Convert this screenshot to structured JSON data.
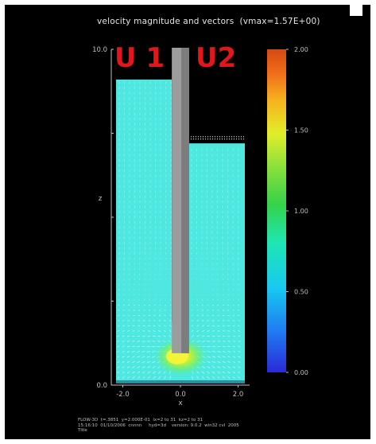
{
  "chart_data": {
    "type": "heatmap",
    "title": "velocity magnitude and vectors",
    "title_suffix": "(vmax=1.57E+00)",
    "xlabel": "x",
    "ylabel": "z",
    "x_ticks": [
      "-2.0",
      "0.0",
      "2.0"
    ],
    "y_ticks": [
      "0.0",
      "10.0"
    ],
    "xlim": [
      -2.4,
      2.4
    ],
    "ylim": [
      0,
      10
    ],
    "colorbar": {
      "ticks": [
        "0.00",
        "0.50",
        "1.00",
        "1.50",
        "2.00"
      ],
      "range": [
        0,
        2
      ]
    },
    "annotations": [
      {
        "id": "u1",
        "text": "U 1",
        "color": "#e3161b"
      },
      {
        "id": "u2",
        "text": "U2",
        "color": "#e3161b"
      }
    ],
    "fluid_levels": {
      "left_tank": 9.1,
      "right_tank": 7.2
    },
    "baffle_x_range": [
      -0.3,
      0.3
    ],
    "high_velocity_region": {
      "x": 0.0,
      "z": 1.0,
      "magnitude": 1.57
    },
    "background_magnitude": 0.7,
    "colors": {
      "fluid": "#4ee8e0",
      "vector": "#c8fdfb",
      "axes": "#bfbfbf",
      "baffle": "#9c9c9c"
    }
  },
  "footer": {
    "line1": "FLOW-3D  t=.3851  y=2.000E-01  ix=2 to 31  kz=2 to 31",
    "line2": "15:16:10  01/10/2006  cnnnn     hyd=3d    version: 9.0.2  win32 cvl  2005",
    "line3": "Title"
  }
}
